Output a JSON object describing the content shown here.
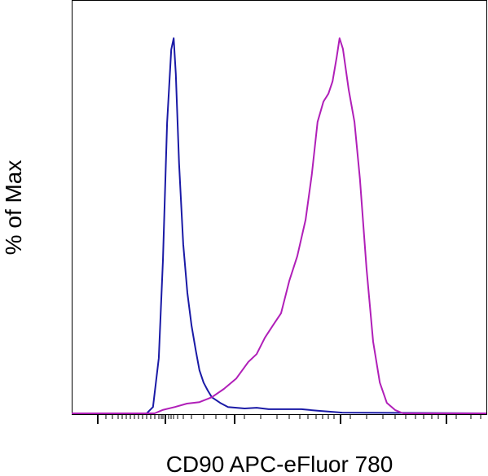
{
  "chart_data": {
    "type": "line",
    "xlabel": "CD90 APC-eFluor 780",
    "ylabel": "% of Max",
    "xlim": [
      0,
      100
    ],
    "ylim": [
      0,
      100
    ],
    "series": [
      {
        "color": "#1a1aa6",
        "x": [
          0,
          18.1,
          19.6,
          21.0,
          22.0,
          23.0,
          24.0,
          24.6,
          25.1,
          25.9,
          26.9,
          27.9,
          28.9,
          29.9,
          30.8,
          31.8,
          32.8,
          33.8,
          35.8,
          37.7,
          41.7,
          44.6,
          47.5,
          55.4,
          59.3,
          65.2,
          100
        ],
        "values": [
          0,
          0,
          1.7,
          14.7,
          40.8,
          77.4,
          97.0,
          100,
          90.5,
          66.6,
          45.1,
          32.1,
          23.4,
          16.9,
          11.5,
          8.2,
          6.1,
          4.3,
          2.8,
          1.7,
          1.3,
          1.5,
          1.1,
          1.1,
          0.7,
          0.2,
          0
        ]
      },
      {
        "color": "#b01fb8",
        "x": [
          0,
          20.0,
          21.9,
          24.9,
          27.8,
          30.8,
          33.8,
          36.7,
          39.7,
          42.6,
          44.6,
          46.6,
          48.5,
          50.5,
          52.5,
          54.4,
          56.4,
          57.9,
          59.3,
          60.7,
          61.9,
          62.9,
          63.9,
          64.6,
          65.4,
          66.8,
          68.2,
          69.5,
          71.1,
          72.7,
          74.3,
          76.0,
          78.0,
          79.9,
          100
        ],
        "values": [
          0,
          0,
          0.9,
          1.7,
          2.6,
          3.0,
          4.3,
          6.5,
          9.3,
          13.7,
          15.8,
          20.2,
          23.4,
          26.7,
          35.4,
          41.9,
          51.6,
          63.6,
          77.7,
          83.1,
          85.2,
          88.5,
          95.0,
          100,
          97.2,
          86.3,
          77.7,
          62.5,
          38.6,
          19.1,
          8.2,
          2.8,
          0.9,
          0,
          0
        ]
      }
    ]
  }
}
